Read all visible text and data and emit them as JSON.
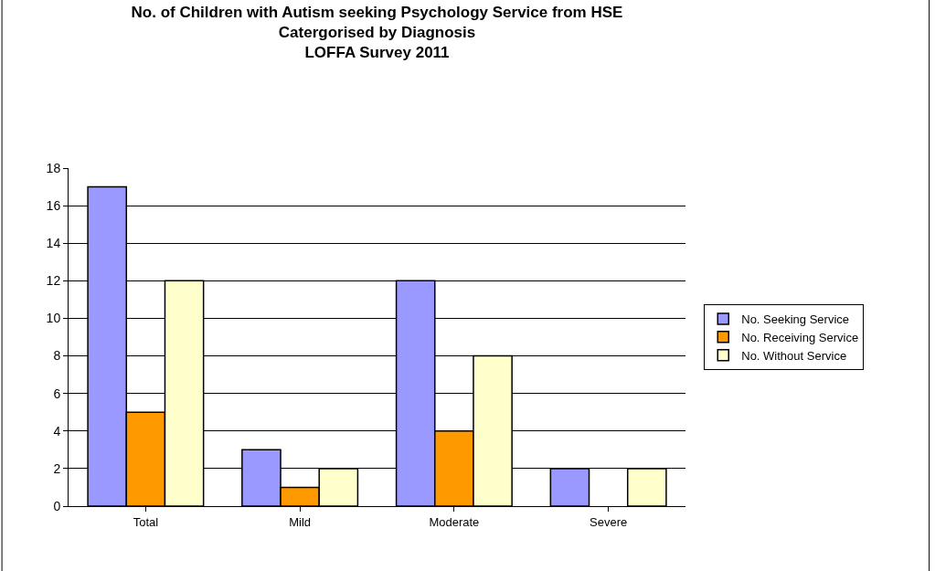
{
  "chart_data": {
    "type": "bar",
    "title": "No. of Children with Autism seeking Psychology Service from HSE\nCatergorised by Diagnosis\nLOFFA Survey 2011",
    "categories": [
      "Total",
      "Mild",
      "Moderate",
      "Severe"
    ],
    "series": [
      {
        "name": "No. Seeking Service",
        "color": "#9999ff",
        "values": [
          17,
          3,
          12,
          2
        ]
      },
      {
        "name": "No. Receiving Service",
        "color": "#ff9900",
        "values": [
          5,
          1,
          4,
          0
        ]
      },
      {
        "name": "No. Without Service",
        "color": "#ffffcc",
        "values": [
          12,
          2,
          8,
          2
        ]
      }
    ],
    "ylim": [
      0,
      18
    ],
    "yticks": [
      0,
      2,
      4,
      6,
      8,
      10,
      12,
      14,
      16,
      18
    ],
    "grid": "y",
    "legend": "right"
  }
}
